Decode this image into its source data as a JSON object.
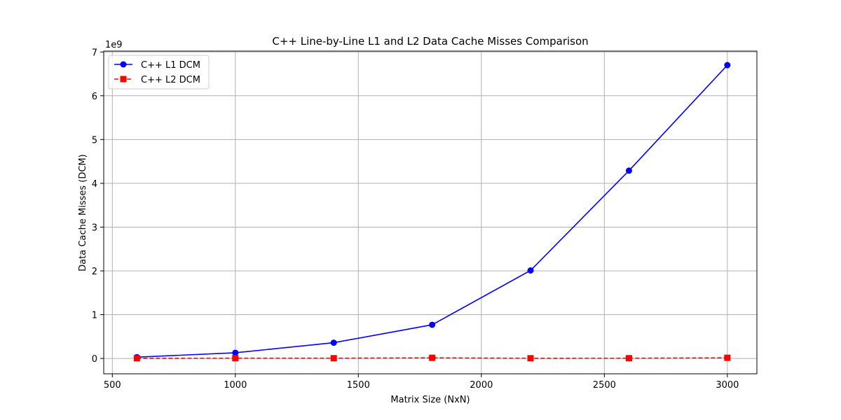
{
  "chart_data": {
    "type": "line",
    "title": "C++ Line-by-Line L1 and L2 Data Cache Misses Comparison",
    "xlabel": "Matrix Size (NxN)",
    "ylabel": "Data Cache Misses (DCM)",
    "y_multiplier_label": "1e9",
    "x": [
      600,
      1000,
      1400,
      1800,
      2200,
      2600,
      3000
    ],
    "xlim": [
      465,
      3120
    ],
    "ylim": [
      -0.35,
      7.02
    ],
    "xticks": [
      500,
      1000,
      1500,
      2000,
      2500,
      3000
    ],
    "yticks": [
      0,
      1,
      2,
      3,
      4,
      5,
      6,
      7
    ],
    "grid": true,
    "legend_placement": "top-left",
    "series": [
      {
        "name": "C++ L1 DCM",
        "values": [
          0.03,
          0.13,
          0.36,
          0.77,
          2.01,
          4.29,
          6.7
        ],
        "color": "#0000ff",
        "marker": "circle",
        "linestyle": "solid"
      },
      {
        "name": "C++ L2 DCM",
        "values": [
          0.005,
          0.006,
          0.006,
          0.015,
          0.005,
          0.006,
          0.015
        ],
        "color": "#ff0000",
        "marker": "square",
        "linestyle": "dashed"
      }
    ]
  }
}
